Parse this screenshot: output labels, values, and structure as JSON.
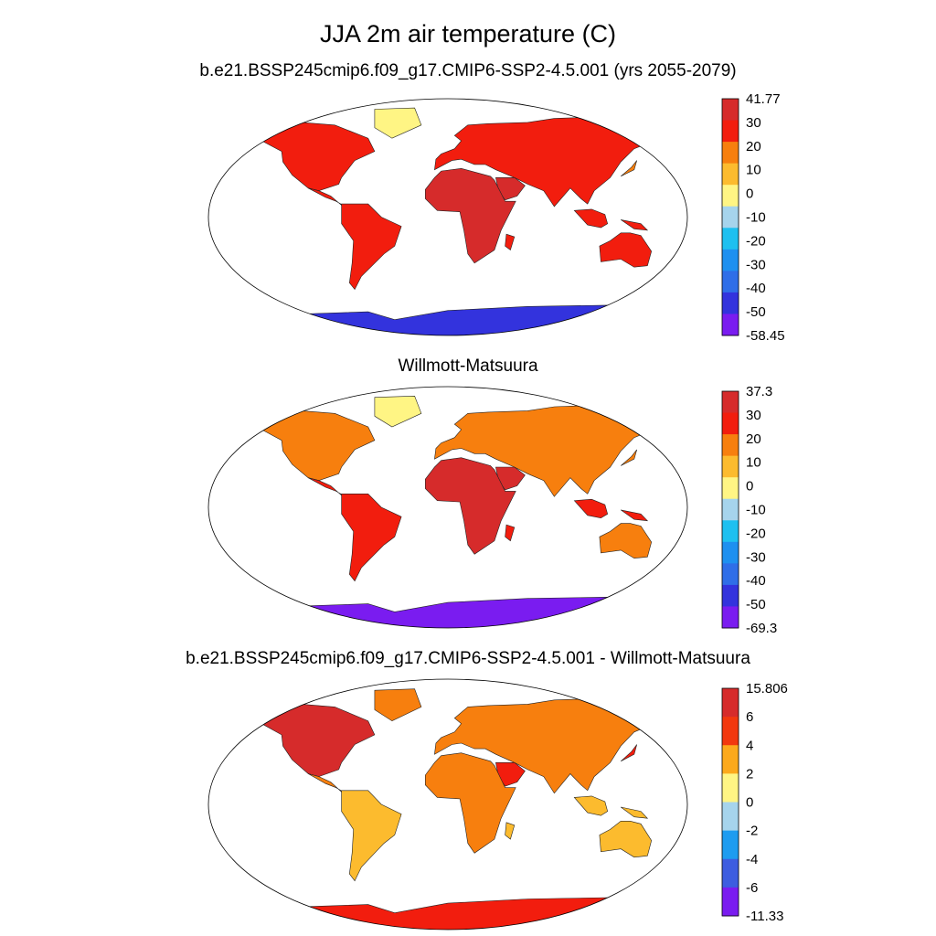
{
  "title": "JJA 2m air temperature (C)",
  "colors": {
    "temp": [
      "#7a1cf0",
      "#3333dd",
      "#2f6ee8",
      "#1e90f0",
      "#1ec0f0",
      "#a6d4ec",
      "#fff584",
      "#fcbb2e",
      "#f77f0e",
      "#f21d0e",
      "#d62b2b"
    ],
    "diff": [
      "#7a1cf0",
      "#3d5de0",
      "#1e9cf0",
      "#a6d4ec",
      "#fff584",
      "#fca91c",
      "#f2380e",
      "#d62b2b"
    ],
    "land_hot": "#d62b2b",
    "land_warm": "#f21d0e",
    "land_mild": "#f77f0e",
    "land_cool": "#fcbb2e",
    "land_cold": "#fff584",
    "ice_cold": "#3333dd",
    "ice_colder": "#7a1cf0"
  },
  "panels": [
    {
      "title": "b.e21.BSSP245cmip6.f09_g17.CMIP6-SSP2-4.5.001 (yrs 2055-2079)",
      "colorbar": {
        "labels": [
          "41.77",
          "30",
          "20",
          "10",
          "0",
          "-10",
          "-20",
          "-30",
          "-40",
          "-50",
          "-58.45"
        ],
        "palette": "temp"
      }
    },
    {
      "title": "Willmott-Matsuura",
      "colorbar": {
        "labels": [
          "37.3",
          "30",
          "20",
          "10",
          "0",
          "-10",
          "-20",
          "-30",
          "-40",
          "-50",
          "-69.3"
        ],
        "palette": "temp"
      }
    },
    {
      "title": "b.e21.BSSP245cmip6.f09_g17.CMIP6-SSP2-4.5.001 - Willmott-Matsuura",
      "colorbar": {
        "labels": [
          "15.806",
          "6",
          "4",
          "2",
          "0",
          "-2",
          "-4",
          "-6",
          "-11.33"
        ],
        "palette": "diff"
      }
    }
  ]
}
